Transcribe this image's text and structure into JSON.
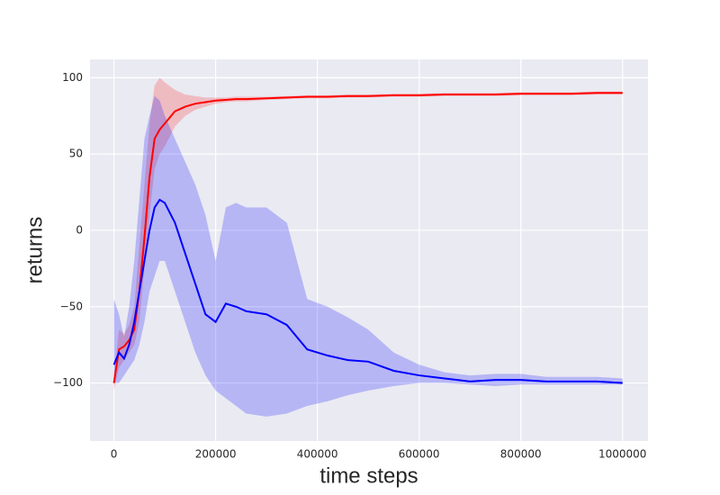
{
  "chart_data": {
    "type": "line",
    "x_label": "time steps",
    "y_label": "returns",
    "x": [
      0,
      10000,
      20000,
      30000,
      40000,
      50000,
      60000,
      70000,
      80000,
      90000,
      100000,
      120000,
      140000,
      160000,
      180000,
      200000,
      220000,
      240000,
      260000,
      300000,
      340000,
      380000,
      420000,
      460000,
      500000,
      550000,
      600000,
      650000,
      700000,
      750000,
      800000,
      850000,
      900000,
      950000,
      1000000
    ],
    "series": [
      {
        "color": "#ff0000",
        "band_opacity": 0.2,
        "values": [
          -100,
          -78,
          -76,
          -72,
          -65,
          -40,
          -5,
          35,
          60,
          66,
          70,
          78,
          81,
          83,
          84,
          85,
          85.5,
          86,
          86,
          86.5,
          87,
          87.5,
          87.5,
          88,
          88,
          88.5,
          88.5,
          89,
          89,
          89,
          89.5,
          89.5,
          89.5,
          90,
          90
        ],
        "lower": [
          -105,
          -90,
          -85,
          -80,
          -75,
          -60,
          -25,
          10,
          40,
          50,
          55,
          68,
          75,
          79,
          81,
          83,
          84,
          84.5,
          84.5,
          85.5,
          86,
          86.5,
          86.5,
          87,
          87,
          87.5,
          87.5,
          88,
          88,
          88,
          88.5,
          88.5,
          88.5,
          89,
          89
        ],
        "upper": [
          -95,
          -65,
          -68,
          -62,
          -50,
          -10,
          30,
          70,
          95,
          100,
          97,
          92,
          89,
          88,
          87,
          87,
          87,
          87.5,
          87.5,
          87.5,
          88,
          88.5,
          88.5,
          89,
          89,
          89.5,
          89.5,
          90,
          90,
          90,
          90.5,
          90.5,
          90.5,
          91,
          91
        ]
      },
      {
        "color": "#0000ff",
        "band_opacity": 0.22,
        "values": [
          -88,
          -80,
          -84,
          -75,
          -60,
          -40,
          -20,
          0,
          15,
          20,
          18,
          5,
          -15,
          -35,
          -55,
          -60,
          -48,
          -50,
          -53,
          -55,
          -62,
          -78,
          -82,
          -85,
          -86,
          -92,
          -95,
          -97,
          -99,
          -98,
          -98,
          -99,
          -99,
          -99,
          -100
        ],
        "lower": [
          -100,
          -100,
          -95,
          -90,
          -85,
          -75,
          -60,
          -40,
          -30,
          -20,
          -20,
          -40,
          -60,
          -80,
          -95,
          -105,
          -110,
          -115,
          -120,
          -122,
          -120,
          -115,
          -112,
          -108,
          -105,
          -102,
          -100,
          -100,
          -101,
          -102,
          -101,
          -101,
          -101,
          -101,
          -101
        ],
        "upper": [
          -45,
          -55,
          -70,
          -50,
          -20,
          20,
          60,
          75,
          88,
          85,
          75,
          60,
          45,
          30,
          10,
          -20,
          15,
          18,
          15,
          15,
          5,
          -45,
          -50,
          -57,
          -65,
          -80,
          -88,
          -93,
          -95,
          -94,
          -94,
          -96,
          -96,
          -96,
          -97
        ]
      }
    ],
    "xlim": [
      -47000,
      1050000
    ],
    "ylim": [
      -138,
      112
    ],
    "xticks": [
      0,
      200000,
      400000,
      600000,
      800000,
      1000000
    ],
    "yticks": [
      {
        "value": -100,
        "label": "−100"
      },
      {
        "value": -50,
        "label": "−50"
      },
      0,
      50,
      100
    ],
    "grid": true
  }
}
